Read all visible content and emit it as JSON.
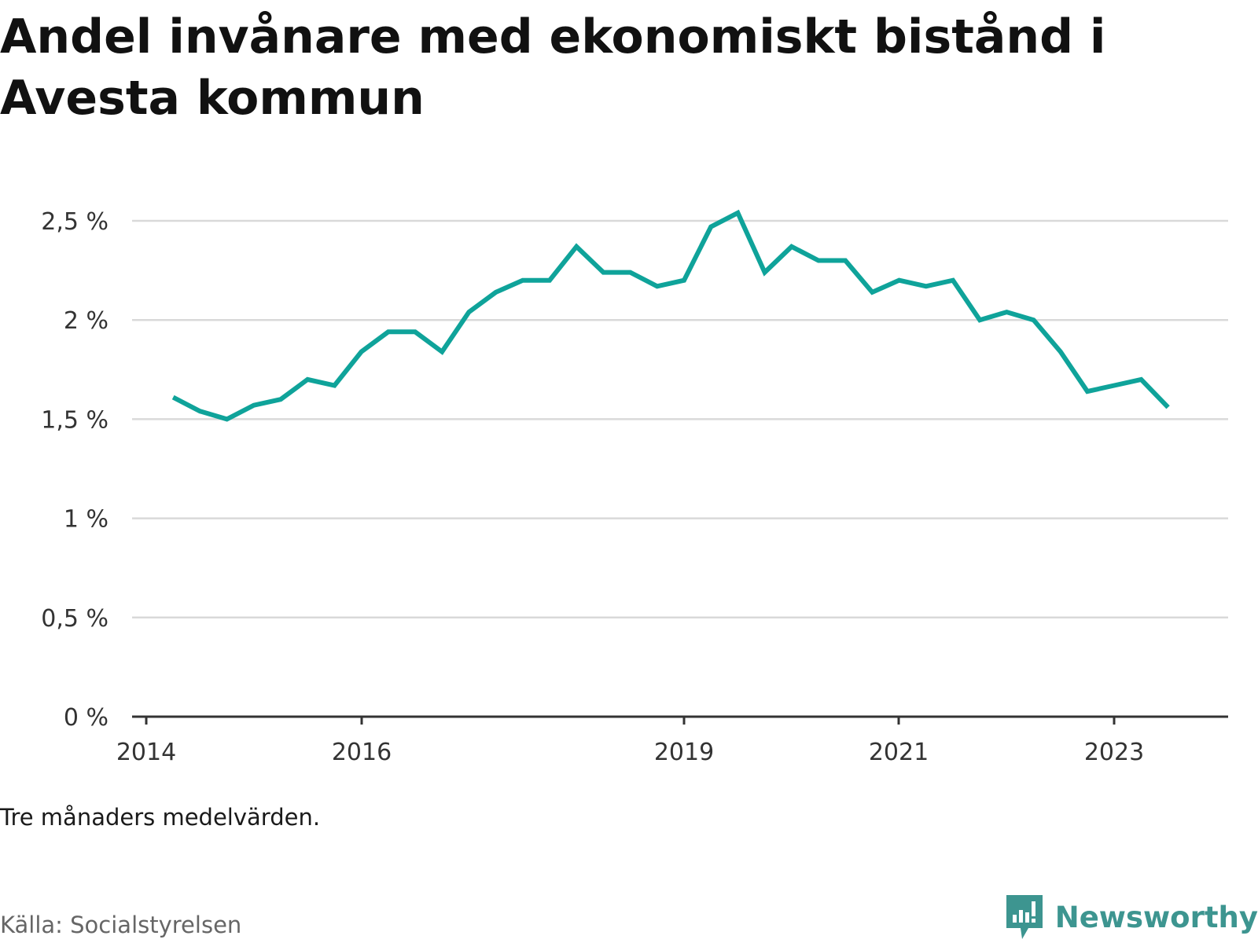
{
  "title": "Andel invånare med ekonomiskt bistånd i Avesta kommun",
  "note": "Tre månaders medelvärden.",
  "source": "Källa: Socialstyrelsen",
  "brand": {
    "name": "Newsworthy",
    "icon": "newsworthy-logo-icon",
    "color": "#3d9590"
  },
  "colors": {
    "line": "#0fa39a",
    "grid": "#d9d9d9",
    "axis": "#333333"
  },
  "chart_data": {
    "type": "line",
    "title": "Andel invånare med ekonomiskt bistånd i Avesta kommun",
    "xlabel": "",
    "ylabel": "",
    "x_ticks": [
      "2014",
      "2016",
      "2019",
      "2021",
      "2023"
    ],
    "y_ticks": [
      "0 %",
      "0,5 %",
      "1 %",
      "1,5 %",
      "2 %",
      "2,5 %"
    ],
    "ylim": [
      0,
      2.5
    ],
    "xlim": [
      "2014-01",
      "2024-01"
    ],
    "grid": true,
    "legend": "none",
    "series": [
      {
        "x": [
          "2014-04",
          "2014-07",
          "2014-10",
          "2015-01",
          "2015-04",
          "2015-07",
          "2015-10",
          "2016-01",
          "2016-04",
          "2016-07",
          "2016-10",
          "2017-01",
          "2017-04",
          "2017-07",
          "2017-10",
          "2018-01",
          "2018-04",
          "2018-07",
          "2018-10",
          "2019-01",
          "2019-04",
          "2019-07",
          "2019-10",
          "2020-01",
          "2020-04",
          "2020-07",
          "2020-10",
          "2021-01",
          "2021-04",
          "2021-07",
          "2021-10",
          "2022-01",
          "2022-04",
          "2022-07",
          "2022-10",
          "2023-01",
          "2023-04",
          "2023-07"
        ],
        "values": [
          1.61,
          1.54,
          1.5,
          1.57,
          1.6,
          1.7,
          1.67,
          1.84,
          1.94,
          1.94,
          1.84,
          2.04,
          2.14,
          2.2,
          2.2,
          2.37,
          2.24,
          2.24,
          2.17,
          2.2,
          2.47,
          2.54,
          2.24,
          2.37,
          2.3,
          2.3,
          2.14,
          2.2,
          2.17,
          2.2,
          2.0,
          2.04,
          2.0,
          1.84,
          1.64,
          1.67,
          1.7,
          1.56
        ]
      }
    ]
  }
}
